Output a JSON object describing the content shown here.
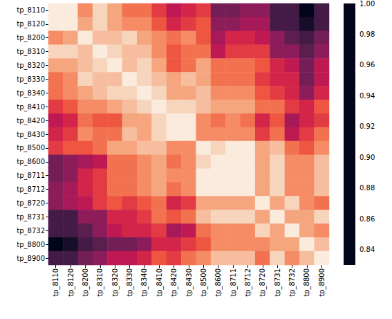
{
  "chart_data": {
    "type": "heatmap",
    "categories": [
      "tp_8110",
      "tp_8120",
      "tp_8200",
      "tp_8310",
      "tp_8320",
      "tp_8330",
      "tp_8340",
      "tp_8410",
      "tp_8420",
      "tp_8430",
      "tp_8500",
      "tp_8600",
      "tp_8711",
      "tp_8712",
      "tp_8720",
      "tp_8731",
      "tp_8732",
      "tp_8800",
      "tp_8900"
    ],
    "cells": [
      [
        1,
        1,
        0.96,
        0.99,
        0.97,
        0.95,
        0.95,
        0.93,
        0.91,
        0.92,
        0.93,
        0.88,
        0.88,
        0.89,
        0.89,
        0.86,
        0.86,
        0.83,
        0.86
      ],
      [
        1,
        1,
        0.97,
        0.99,
        0.97,
        0.96,
        0.96,
        0.94,
        0.92,
        0.93,
        0.94,
        0.89,
        0.89,
        0.9,
        0.9,
        0.86,
        0.86,
        0.84,
        0.86
      ],
      [
        0.96,
        0.97,
        1,
        0.98,
        0.98,
        0.99,
        0.97,
        0.96,
        0.95,
        0.96,
        0.94,
        0.9,
        0.92,
        0.92,
        0.91,
        0.89,
        0.87,
        0.86,
        0.88
      ],
      [
        0.99,
        0.99,
        0.98,
        1,
        0.99,
        0.98,
        0.98,
        0.96,
        0.94,
        0.95,
        0.95,
        0.91,
        0.93,
        0.93,
        0.93,
        0.89,
        0.89,
        0.87,
        0.89
      ],
      [
        0.97,
        0.97,
        0.98,
        0.99,
        1,
        0.98,
        0.99,
        0.97,
        0.94,
        0.95,
        0.97,
        0.95,
        0.95,
        0.95,
        0.94,
        0.92,
        0.91,
        0.88,
        0.91
      ],
      [
        0.95,
        0.96,
        0.99,
        0.98,
        0.98,
        1,
        0.99,
        0.98,
        0.97,
        0.98,
        0.97,
        0.95,
        0.95,
        0.95,
        0.93,
        0.92,
        0.92,
        0.88,
        0.91
      ],
      [
        0.95,
        0.96,
        0.97,
        0.98,
        0.99,
        0.99,
        1,
        0.99,
        0.97,
        0.97,
        0.98,
        0.96,
        0.96,
        0.96,
        0.94,
        0.93,
        0.92,
        0.89,
        0.92
      ],
      [
        0.93,
        0.94,
        0.96,
        0.96,
        0.97,
        0.98,
        0.99,
        1,
        0.99,
        0.99,
        0.98,
        0.97,
        0.97,
        0.97,
        0.95,
        0.95,
        0.93,
        0.92,
        0.94
      ],
      [
        0.91,
        0.92,
        0.95,
        0.94,
        0.94,
        0.97,
        0.97,
        0.99,
        1,
        1,
        0.96,
        0.95,
        0.96,
        0.95,
        0.92,
        0.94,
        0.9,
        0.92,
        0.93
      ],
      [
        0.92,
        0.93,
        0.96,
        0.95,
        0.95,
        0.98,
        0.97,
        0.99,
        1,
        1,
        0.96,
        0.96,
        0.96,
        0.96,
        0.93,
        0.95,
        0.91,
        0.93,
        0.95
      ],
      [
        0.93,
        0.94,
        0.94,
        0.95,
        0.97,
        0.97,
        0.98,
        0.98,
        0.96,
        0.96,
        1,
        0.99,
        1,
        1,
        0.97,
        0.98,
        0.95,
        0.94,
        0.96
      ],
      [
        0.88,
        0.89,
        0.9,
        0.91,
        0.95,
        0.95,
        0.96,
        0.97,
        0.95,
        0.96,
        0.99,
        1,
        1,
        1,
        0.97,
        0.99,
        0.96,
        0.96,
        0.98
      ],
      [
        0.88,
        0.89,
        0.92,
        0.93,
        0.95,
        0.95,
        0.96,
        0.97,
        0.96,
        0.96,
        1,
        1,
        1,
        1,
        0.97,
        0.99,
        0.96,
        0.96,
        0.98
      ],
      [
        0.89,
        0.9,
        0.92,
        0.93,
        0.95,
        0.95,
        0.96,
        0.97,
        0.95,
        0.96,
        1,
        1,
        1,
        1,
        0.97,
        0.99,
        0.96,
        0.96,
        0.98
      ],
      [
        0.89,
        0.9,
        0.91,
        0.93,
        0.94,
        0.93,
        0.94,
        0.95,
        0.92,
        0.93,
        0.97,
        0.97,
        0.97,
        0.97,
        1,
        0.97,
        0.99,
        0.96,
        0.95
      ],
      [
        0.86,
        0.86,
        0.89,
        0.89,
        0.92,
        0.92,
        0.93,
        0.95,
        0.94,
        0.95,
        0.98,
        0.99,
        0.99,
        0.99,
        0.97,
        1,
        0.97,
        0.97,
        0.99
      ],
      [
        0.86,
        0.86,
        0.87,
        0.89,
        0.91,
        0.92,
        0.92,
        0.93,
        0.9,
        0.91,
        0.95,
        0.96,
        0.96,
        0.96,
        0.99,
        0.97,
        1,
        0.97,
        0.96
      ],
      [
        0.83,
        0.84,
        0.86,
        0.87,
        0.88,
        0.88,
        0.89,
        0.92,
        0.92,
        0.93,
        0.94,
        0.96,
        0.96,
        0.96,
        0.96,
        0.97,
        0.97,
        1,
        0.98
      ],
      [
        0.86,
        0.86,
        0.88,
        0.89,
        0.91,
        0.91,
        0.92,
        0.94,
        0.93,
        0.95,
        0.96,
        0.98,
        0.98,
        0.98,
        0.95,
        0.99,
        0.96,
        0.98,
        1
      ]
    ],
    "colorbar_range": [
      0.83,
      1
    ],
    "colorbar_ticks": [
      0.84,
      0.86,
      0.88,
      {
        "value": 0.9,
        "label": "0.90"
      },
      0.92,
      0.94,
      0.96,
      0.98,
      {
        "value": 1,
        "label": "1.00"
      }
    ]
  }
}
